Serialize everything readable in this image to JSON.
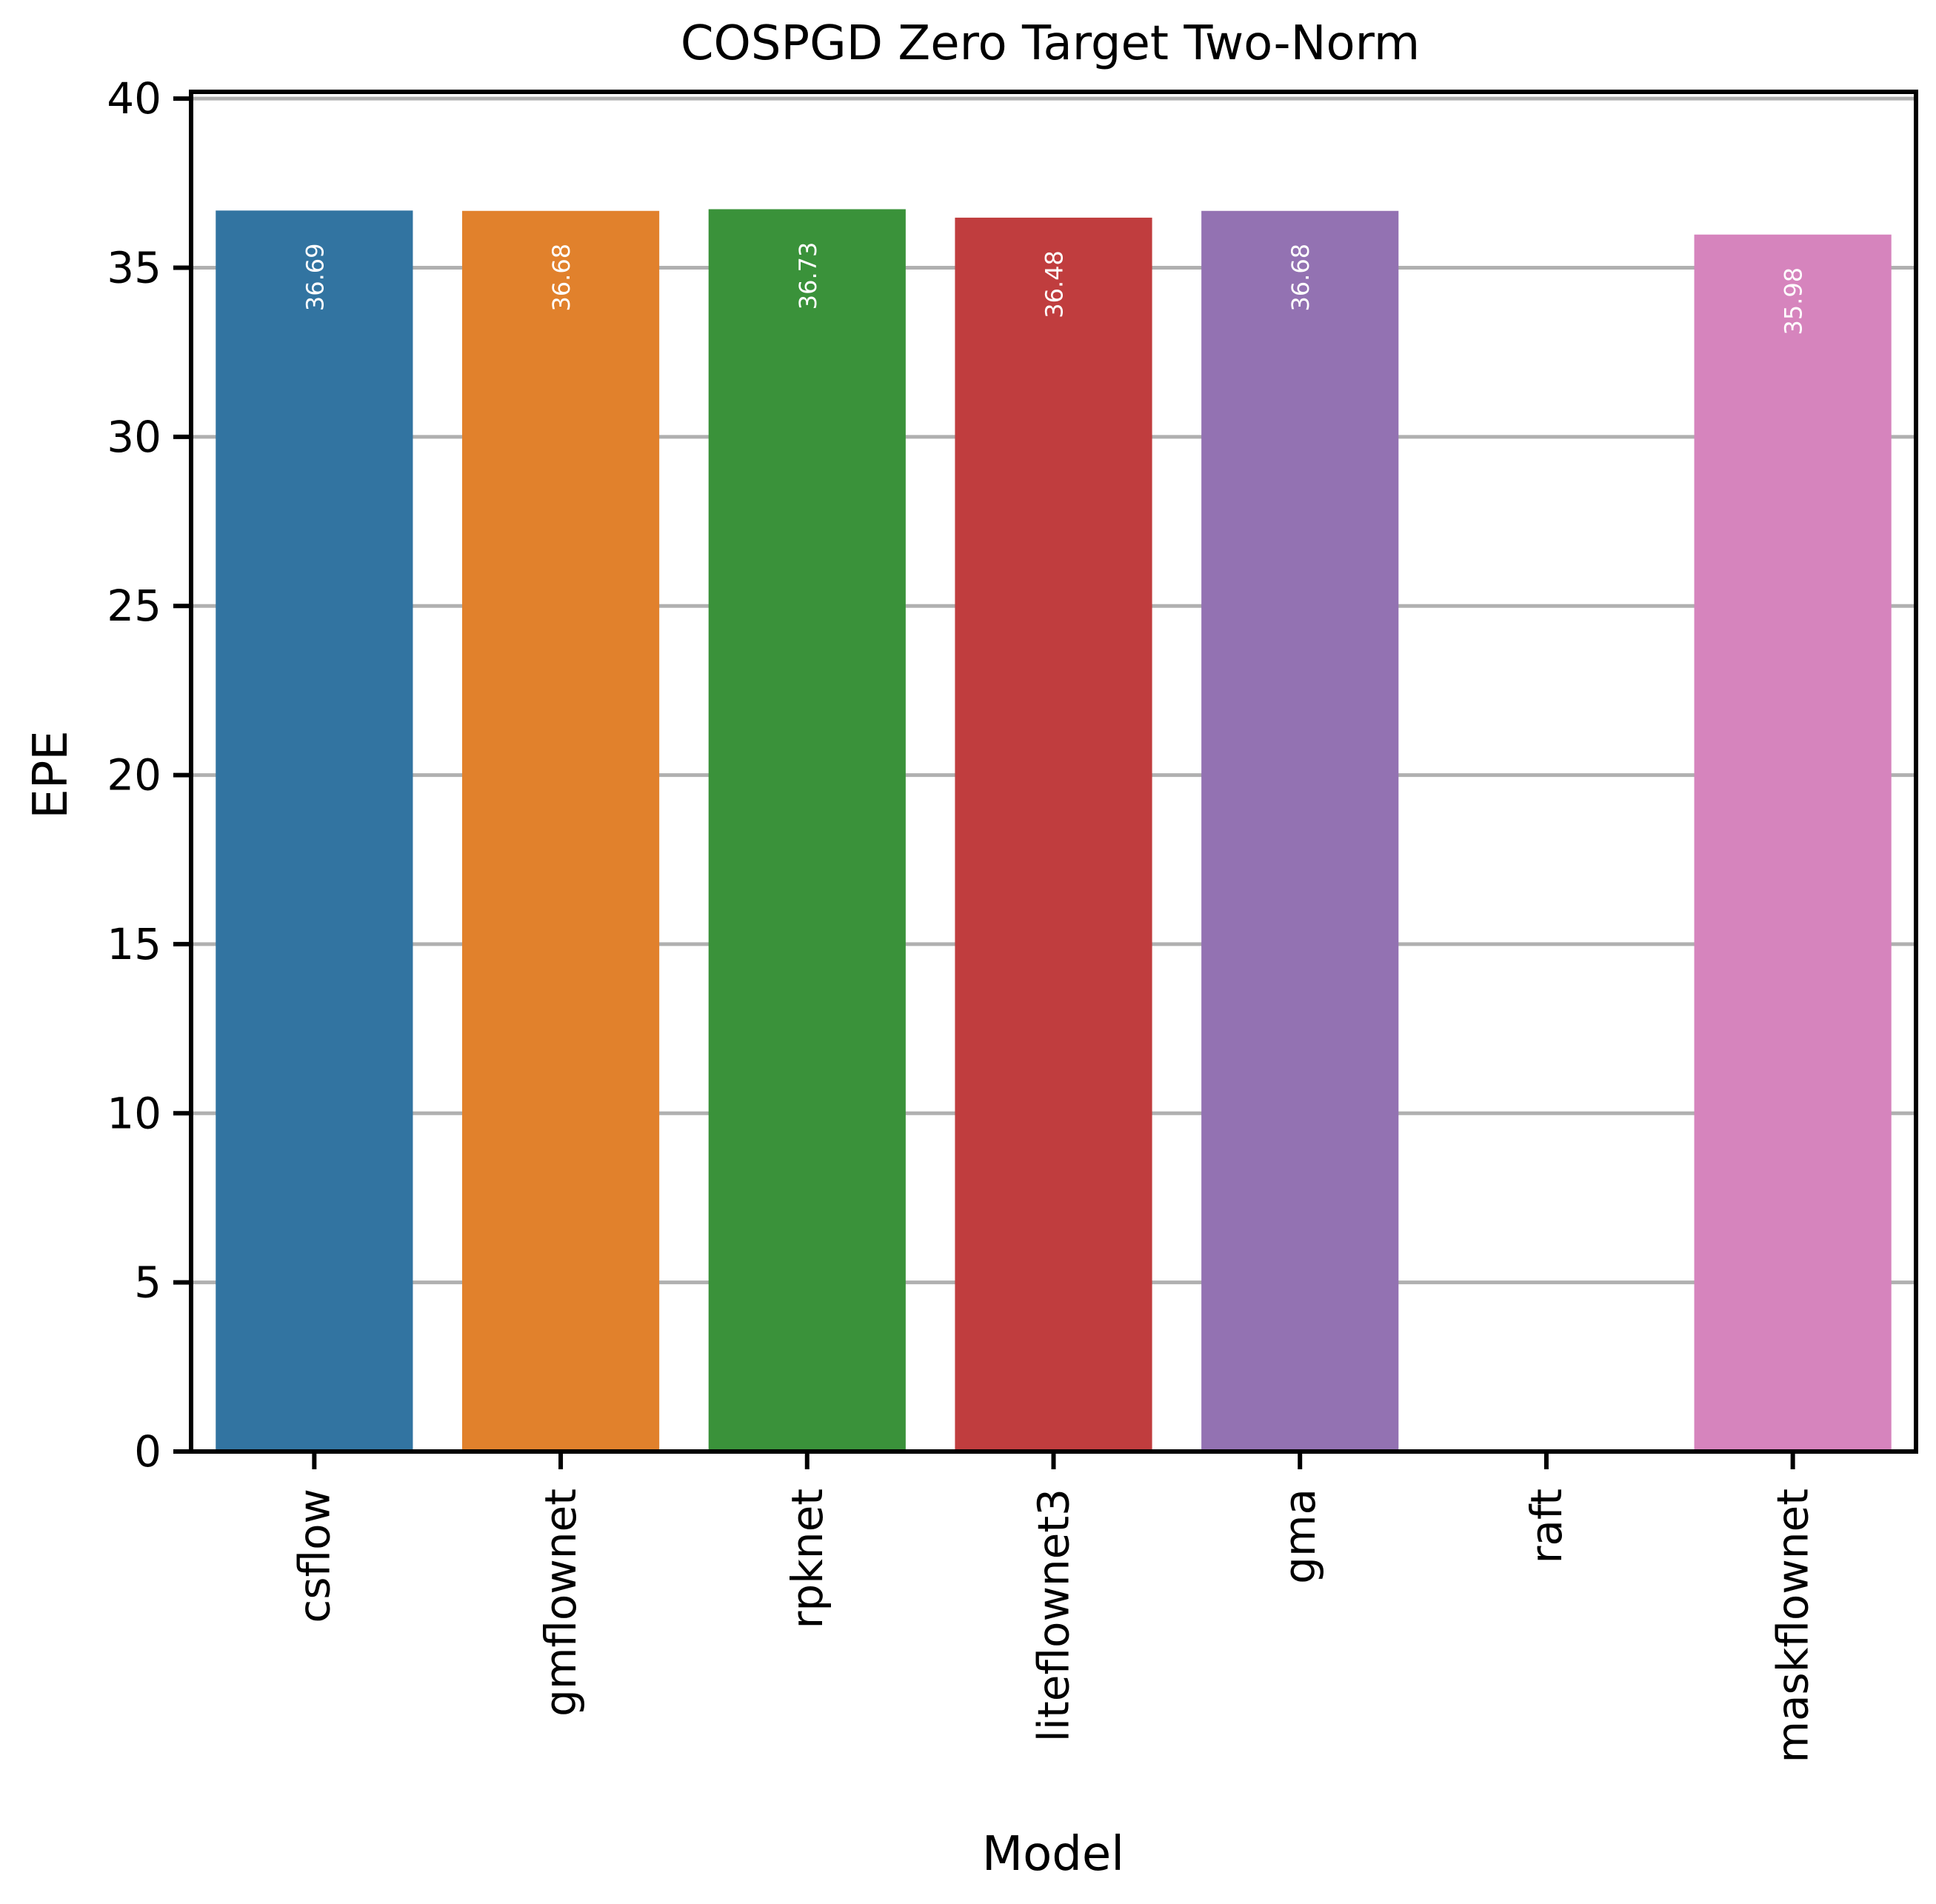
{
  "chart_data": {
    "type": "bar",
    "title": "COSPGD Zero Target Two-Norm",
    "xlabel": "Model",
    "ylabel": "EPE",
    "categories": [
      "csflow",
      "gmflownet",
      "rpknet",
      "liteflownet3",
      "gma",
      "raft",
      "maskflownet"
    ],
    "values": [
      36.69,
      36.68,
      36.73,
      36.48,
      36.68,
      null,
      35.98
    ],
    "data_labels": [
      "36.69",
      "36.68",
      "36.73",
      "36.48",
      "36.68",
      "",
      "35.98"
    ],
    "colors": [
      "#3274a1",
      "#e1812c",
      "#3a923a",
      "#c03d3e",
      "#9372b2",
      "#845b53",
      "#d684bd"
    ],
    "ylim": [
      0,
      40.2
    ],
    "yticks": [
      0,
      5,
      10,
      15,
      20,
      25,
      30,
      35,
      40
    ],
    "grid": true,
    "legend": "none"
  }
}
